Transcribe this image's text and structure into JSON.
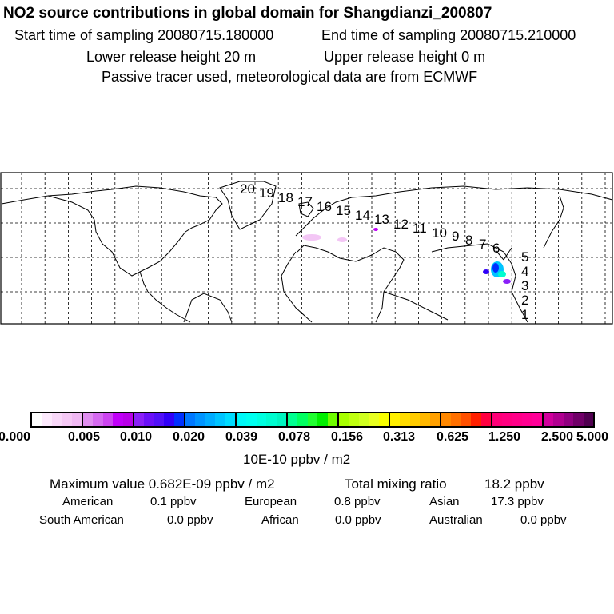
{
  "title": "NO2 source contributions in global domain for Shangdianzi_200807",
  "header": {
    "start_label": "Start time of sampling 20080715.180000",
    "end_label": "End time of sampling 20080715.210000",
    "lower_label": "Lower release height   20 m",
    "upper_label": "Upper release height    0 m",
    "note": "Passive tracer used, meteorological data are from ECMWF"
  },
  "map": {
    "trajectory_labels": [
      "20",
      "19",
      "18",
      "17",
      "16",
      "15",
      "14",
      "13",
      "12",
      "11",
      "10",
      "9",
      "8",
      "7",
      "6",
      "5",
      "4",
      "3",
      "2",
      "1"
    ]
  },
  "colorbar": {
    "ticks": [
      "0.000",
      "0.005",
      "0.010",
      "0.020",
      "0.039",
      "0.078",
      "0.156",
      "0.313",
      "0.625",
      "1.250",
      "2.500",
      "5.000"
    ],
    "segments": [
      [
        "#ffffff",
        "#fdeafd",
        "#f9d8f9",
        "#f5c8f5",
        "#f0b8f3"
      ],
      [
        "#e08ef0",
        "#d56af0",
        "#cc44f0",
        "#c000f8",
        "#b800e8"
      ],
      [
        "#8a20f8",
        "#6a10f8",
        "#5010f8",
        "#3000f8",
        "#0030ff"
      ],
      [
        "#0078ff",
        "#0094ff",
        "#00acff",
        "#00c4ff",
        "#00dcff"
      ],
      [
        "#00f8f8",
        "#00fff0",
        "#00ffe0",
        "#00fcd0",
        "#00f4c0"
      ],
      [
        "#00ff90",
        "#00ff60",
        "#20ff30",
        "#00f000",
        "#70ff00"
      ],
      [
        "#a8ff00",
        "#c0ff10",
        "#d0ff20",
        "#e8ff20",
        "#f8ff00"
      ],
      [
        "#fff000",
        "#ffdc00",
        "#ffcc00",
        "#ffb800",
        "#ffa000"
      ],
      [
        "#ff8800",
        "#ff7000",
        "#ff5000",
        "#ff2000",
        "#ff0040"
      ],
      [
        "#ff0078",
        "#ff0080",
        "#ff0088",
        "#ff0090",
        "#ff0098"
      ],
      [
        "#d0009c",
        "#b00090",
        "#900080",
        "#700068",
        "#500050"
      ]
    ],
    "unit": "10E-10 ppbv / m2"
  },
  "summary": {
    "max_label": "Maximum value  0.682E-09 ppbv / m2",
    "total_label": "Total mixing ratio",
    "total_value": "18.2 ppbv",
    "regions": [
      {
        "name": "American",
        "value": "0.1 ppbv"
      },
      {
        "name": "European",
        "value": "0.8 ppbv"
      },
      {
        "name": "Asian",
        "value": "17.3 ppbv"
      },
      {
        "name": "South American",
        "value": "0.0 ppbv"
      },
      {
        "name": "African",
        "value": "0.0 ppbv"
      },
      {
        "name": "Australian",
        "value": "0.0 ppbv"
      }
    ]
  }
}
